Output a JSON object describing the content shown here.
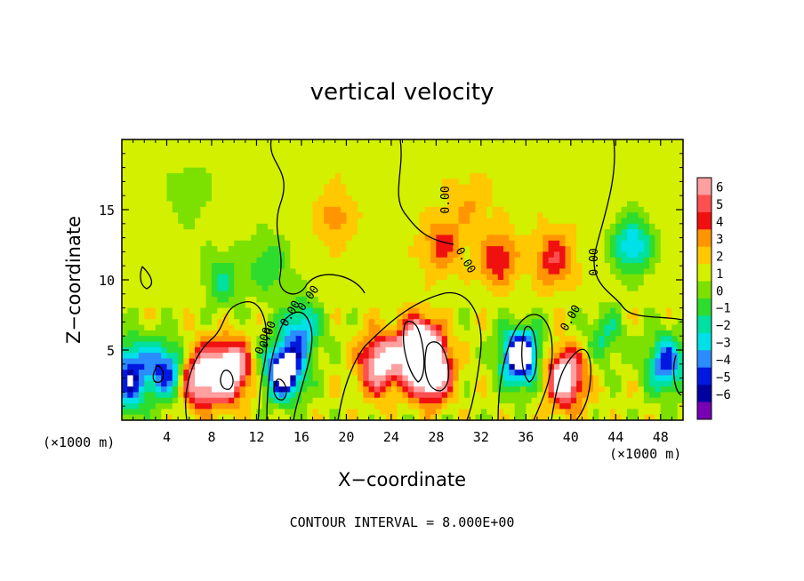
{
  "chart_data": {
    "type": "heatmap",
    "title": "vertical velocity",
    "xlabel": "X−coordinate",
    "ylabel": "Z−coordinate",
    "x_unit_left": "(×1000 m)",
    "x_unit_right": "(×1000 m)",
    "footer": "CONTOUR INTERVAL = 8.000E+00",
    "xlim": [
      0,
      50
    ],
    "ylim": [
      0,
      20
    ],
    "x_ticks": [
      4,
      8,
      12,
      16,
      20,
      24,
      28,
      32,
      36,
      40,
      44,
      48
    ],
    "x_tick_labels": [
      "4",
      "8",
      "12",
      "16",
      "20",
      "24",
      "28",
      "32",
      "36",
      "40",
      "44",
      "48"
    ],
    "y_ticks": [
      5,
      10,
      15
    ],
    "y_tick_labels": [
      "5",
      "10",
      "15"
    ],
    "colorbar": {
      "labels": [
        "6",
        "5",
        "4",
        "3",
        "2",
        "1",
        "0",
        "−1",
        "−2",
        "−3",
        "−4",
        "−5",
        "−6"
      ],
      "colors": [
        "#ffa0a0",
        "#ff5050",
        "#f01010",
        "#ff9500",
        "#ffc800",
        "#d2f000",
        "#7ce000",
        "#2edc2e",
        "#00e0a0",
        "#00e0e8",
        "#2a8cff",
        "#0018e0",
        "#0000a0",
        "#7800b4"
      ]
    },
    "background_value": 0.5,
    "features": [
      {
        "x": 3.5,
        "z": 3.5,
        "w": 0.7
      },
      {
        "x": 6.8,
        "z": 3.0,
        "w": 7.0
      },
      {
        "x": 9.5,
        "z": 3.5,
        "w": 9.0
      },
      {
        "x": 14.5,
        "z": 3.5,
        "w": -9.0
      },
      {
        "x": 16.0,
        "z": 6.5,
        "w": -4.5
      },
      {
        "x": 1.0,
        "z": 4.0,
        "w": -4.5
      },
      {
        "x": 0.3,
        "z": 2.0,
        "w": -4.0
      },
      {
        "x": 4.0,
        "z": 3.5,
        "w": -7.0
      },
      {
        "x": 23.0,
        "z": 4.0,
        "w": 7.0
      },
      {
        "x": 26.5,
        "z": 5.0,
        "w": 11.0
      },
      {
        "x": 27.5,
        "z": 3.5,
        "w": 9.0
      },
      {
        "x": 35.5,
        "z": 4.5,
        "w": -9.0
      },
      {
        "x": 39.5,
        "z": 3.0,
        "w": 7.5
      },
      {
        "x": 45.5,
        "z": 12.5,
        "w": -4.5
      },
      {
        "x": 48.5,
        "z": 4.0,
        "w": -6.0
      },
      {
        "x": 33.5,
        "z": 11.5,
        "w": 3.5
      },
      {
        "x": 38.5,
        "z": 11.5,
        "w": 3.5
      },
      {
        "x": 28.5,
        "z": 12.5,
        "w": 3.0
      },
      {
        "x": 19.0,
        "z": 14.5,
        "w": 2.0
      },
      {
        "x": 13.0,
        "z": 11.0,
        "w": -2.5
      },
      {
        "x": 9.0,
        "z": 10.0,
        "w": -2.5
      },
      {
        "x": 6.0,
        "z": 16.0,
        "w": -1.5
      },
      {
        "x": 43.0,
        "z": 6.0,
        "w": -2.5
      },
      {
        "x": 31.0,
        "z": 15.5,
        "w": 1.5
      }
    ],
    "contour_labels": [
      "0.00",
      "0.00",
      "0.00",
      "0.00",
      "0.00",
      "0.00",
      "0.00",
      "0.00"
    ]
  }
}
